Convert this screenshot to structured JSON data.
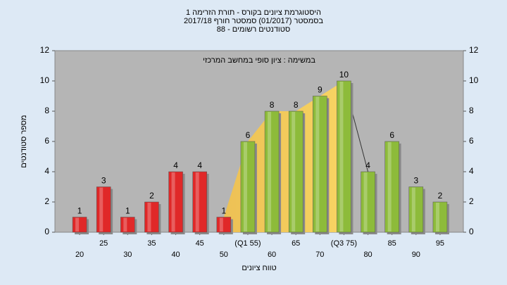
{
  "chart_data": {
    "type": "bar",
    "title": "היסטוגרמת ציונים בקורס - תורת הזרימה 1",
    "subtitle": "בסמסטר  (01/2017)  סמסטר חורף 2017/18",
    "subtitle2": "סטודנטים רשומים - 88",
    "annotation": "במשימה : ציון סופי במחשב המרכזי",
    "xlabel": "טווח ציונים",
    "ylabel": "מספר סטודנטים",
    "categories": [
      "20",
      "25",
      "30",
      "35",
      "40",
      "45",
      "50",
      "(Q1 55)",
      "60",
      "65",
      "70",
      "(Q3 75)",
      "80",
      "85",
      "90",
      "95"
    ],
    "values": [
      1,
      3,
      1,
      2,
      4,
      4,
      1,
      6,
      8,
      8,
      9,
      10,
      4,
      6,
      3,
      2
    ],
    "colors": [
      "#e02828",
      "#e02828",
      "#e02828",
      "#e02828",
      "#e02828",
      "#e02828",
      "#e02828",
      "#8dbb3a",
      "#8dbb3a",
      "#8dbb3a",
      "#8dbb3a",
      "#8dbb3a",
      "#8dbb3a",
      "#8dbb3a",
      "#8dbb3a",
      "#8dbb3a"
    ],
    "ylim": [
      0,
      12
    ],
    "yticks": [
      0,
      2,
      4,
      6,
      8,
      10,
      12
    ],
    "y2lim": [
      0,
      12
    ],
    "y2ticks": [
      0,
      2,
      4,
      6,
      8,
      10,
      12
    ],
    "grid": false
  }
}
